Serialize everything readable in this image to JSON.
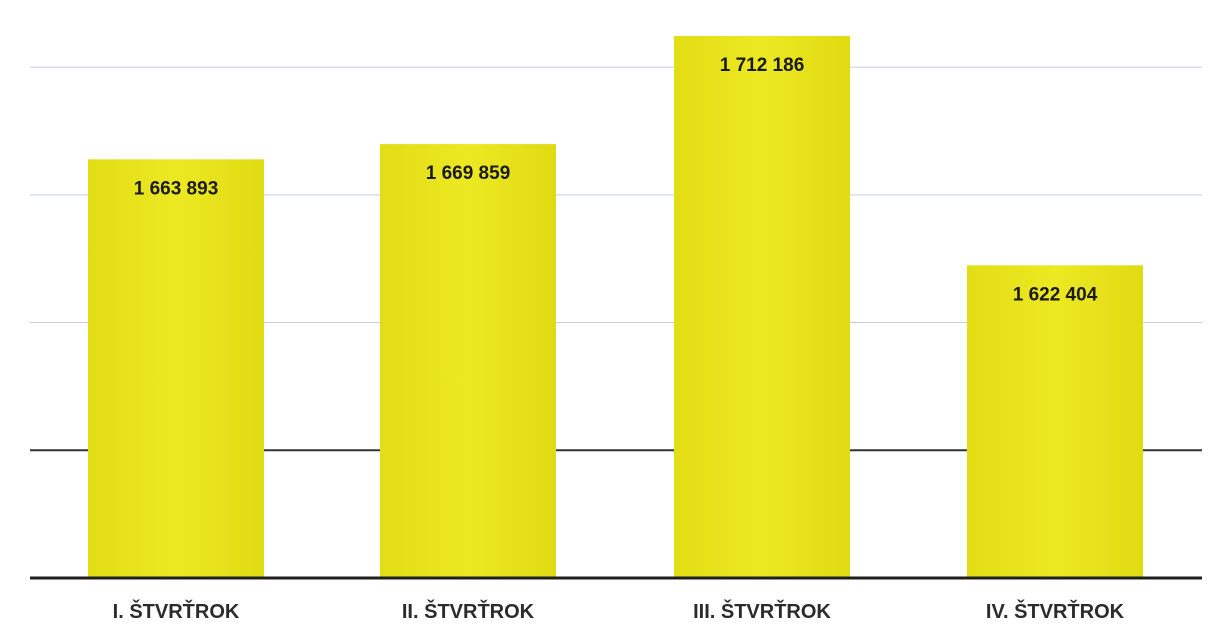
{
  "chart_data": {
    "type": "bar",
    "categories": [
      "I. ŠTVRŤROK",
      "II. ŠTVRŤROK",
      "III. ŠTVRŤROK",
      "IV. ŠTVRŤROK"
    ],
    "values": [
      1663893,
      1669859,
      1712186,
      1622404
    ],
    "value_labels": [
      "1 663 893",
      "1 669 859",
      "1 712 186",
      "1 622 404"
    ],
    "title": "",
    "xlabel": "",
    "ylabel": "",
    "ylim": [
      1500000,
      1720000
    ],
    "grid": true,
    "legend": "none",
    "colors": {
      "bar": "#e6e21c",
      "bar_light": "#f1ee5a",
      "axis": "#1f1f1f",
      "grid": "#c8cce8",
      "text": "#1b1b1b"
    }
  }
}
